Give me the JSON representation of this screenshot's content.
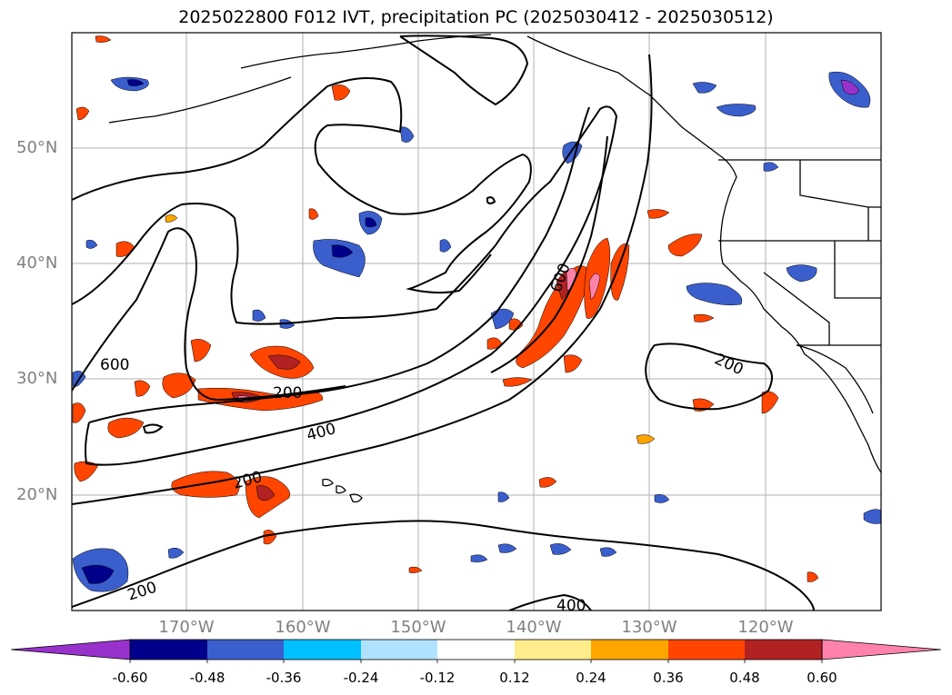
{
  "title": "2025022800 F012 IVT, precipitation PC (2025030412 - 2025030512)",
  "map": {
    "latitude_labels": [
      "50°N",
      "40°N",
      "30°N",
      "20°N"
    ],
    "longitude_labels": [
      "170°W",
      "160°W",
      "150°W",
      "140°W",
      "130°W",
      "120°W"
    ],
    "ivt_contour_labels": [
      "600",
      "200",
      "400",
      "200",
      "600",
      "200",
      "200",
      "400"
    ],
    "contour_color": "#000000",
    "gridline_color": "#b0b0b0",
    "coastline_color": "#000000"
  },
  "colorbar": {
    "tick_labels": [
      "-0.60",
      "-0.48",
      "-0.36",
      "-0.24",
      "-0.12",
      "0.12",
      "0.24",
      "0.36",
      "0.48",
      "0.60"
    ],
    "colors": [
      "#9932cc",
      "#00008b",
      "#3a5fcd",
      "#00bfff",
      "#b0e2ff",
      "#ffffff",
      "#ffec8b",
      "#ffa500",
      "#ff4500",
      "#b22222",
      "#ff82ab"
    ]
  }
}
